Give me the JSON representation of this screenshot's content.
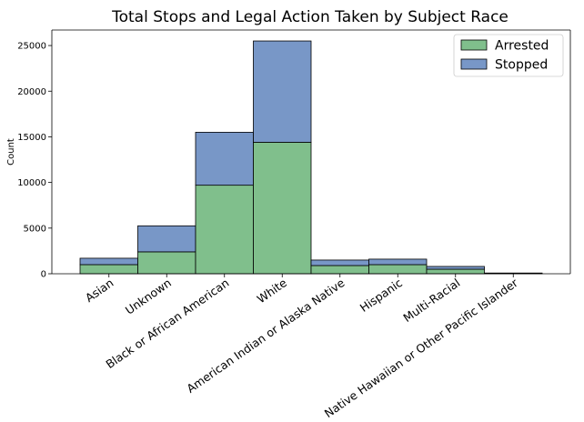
{
  "chart_data": {
    "type": "bar",
    "stacked": true,
    "title": "Total Stops and Legal Action Taken by Subject Race",
    "xlabel": "",
    "ylabel": "Count",
    "ylim": [
      0,
      26700
    ],
    "yticks": [
      0,
      5000,
      10000,
      15000,
      20000,
      25000
    ],
    "grid": false,
    "legend_position": "top-right",
    "categories": [
      "Asian",
      "Unknown",
      "Black or African American",
      "White",
      "American Indian or Alaska Native",
      "Hispanic",
      "Multi-Racial",
      "Native Hawaiian or Other Pacific Islander"
    ],
    "series": [
      {
        "name": "Arrested",
        "color": "#80bf8c",
        "values": [
          1000,
          2400,
          9700,
          14400,
          900,
          1000,
          500,
          50
        ]
      },
      {
        "name": "Stopped",
        "color": "#7897c7",
        "values": [
          700,
          2850,
          5800,
          11100,
          600,
          600,
          300,
          30
        ]
      }
    ],
    "legend": [
      "Arrested",
      "Stopped"
    ]
  }
}
